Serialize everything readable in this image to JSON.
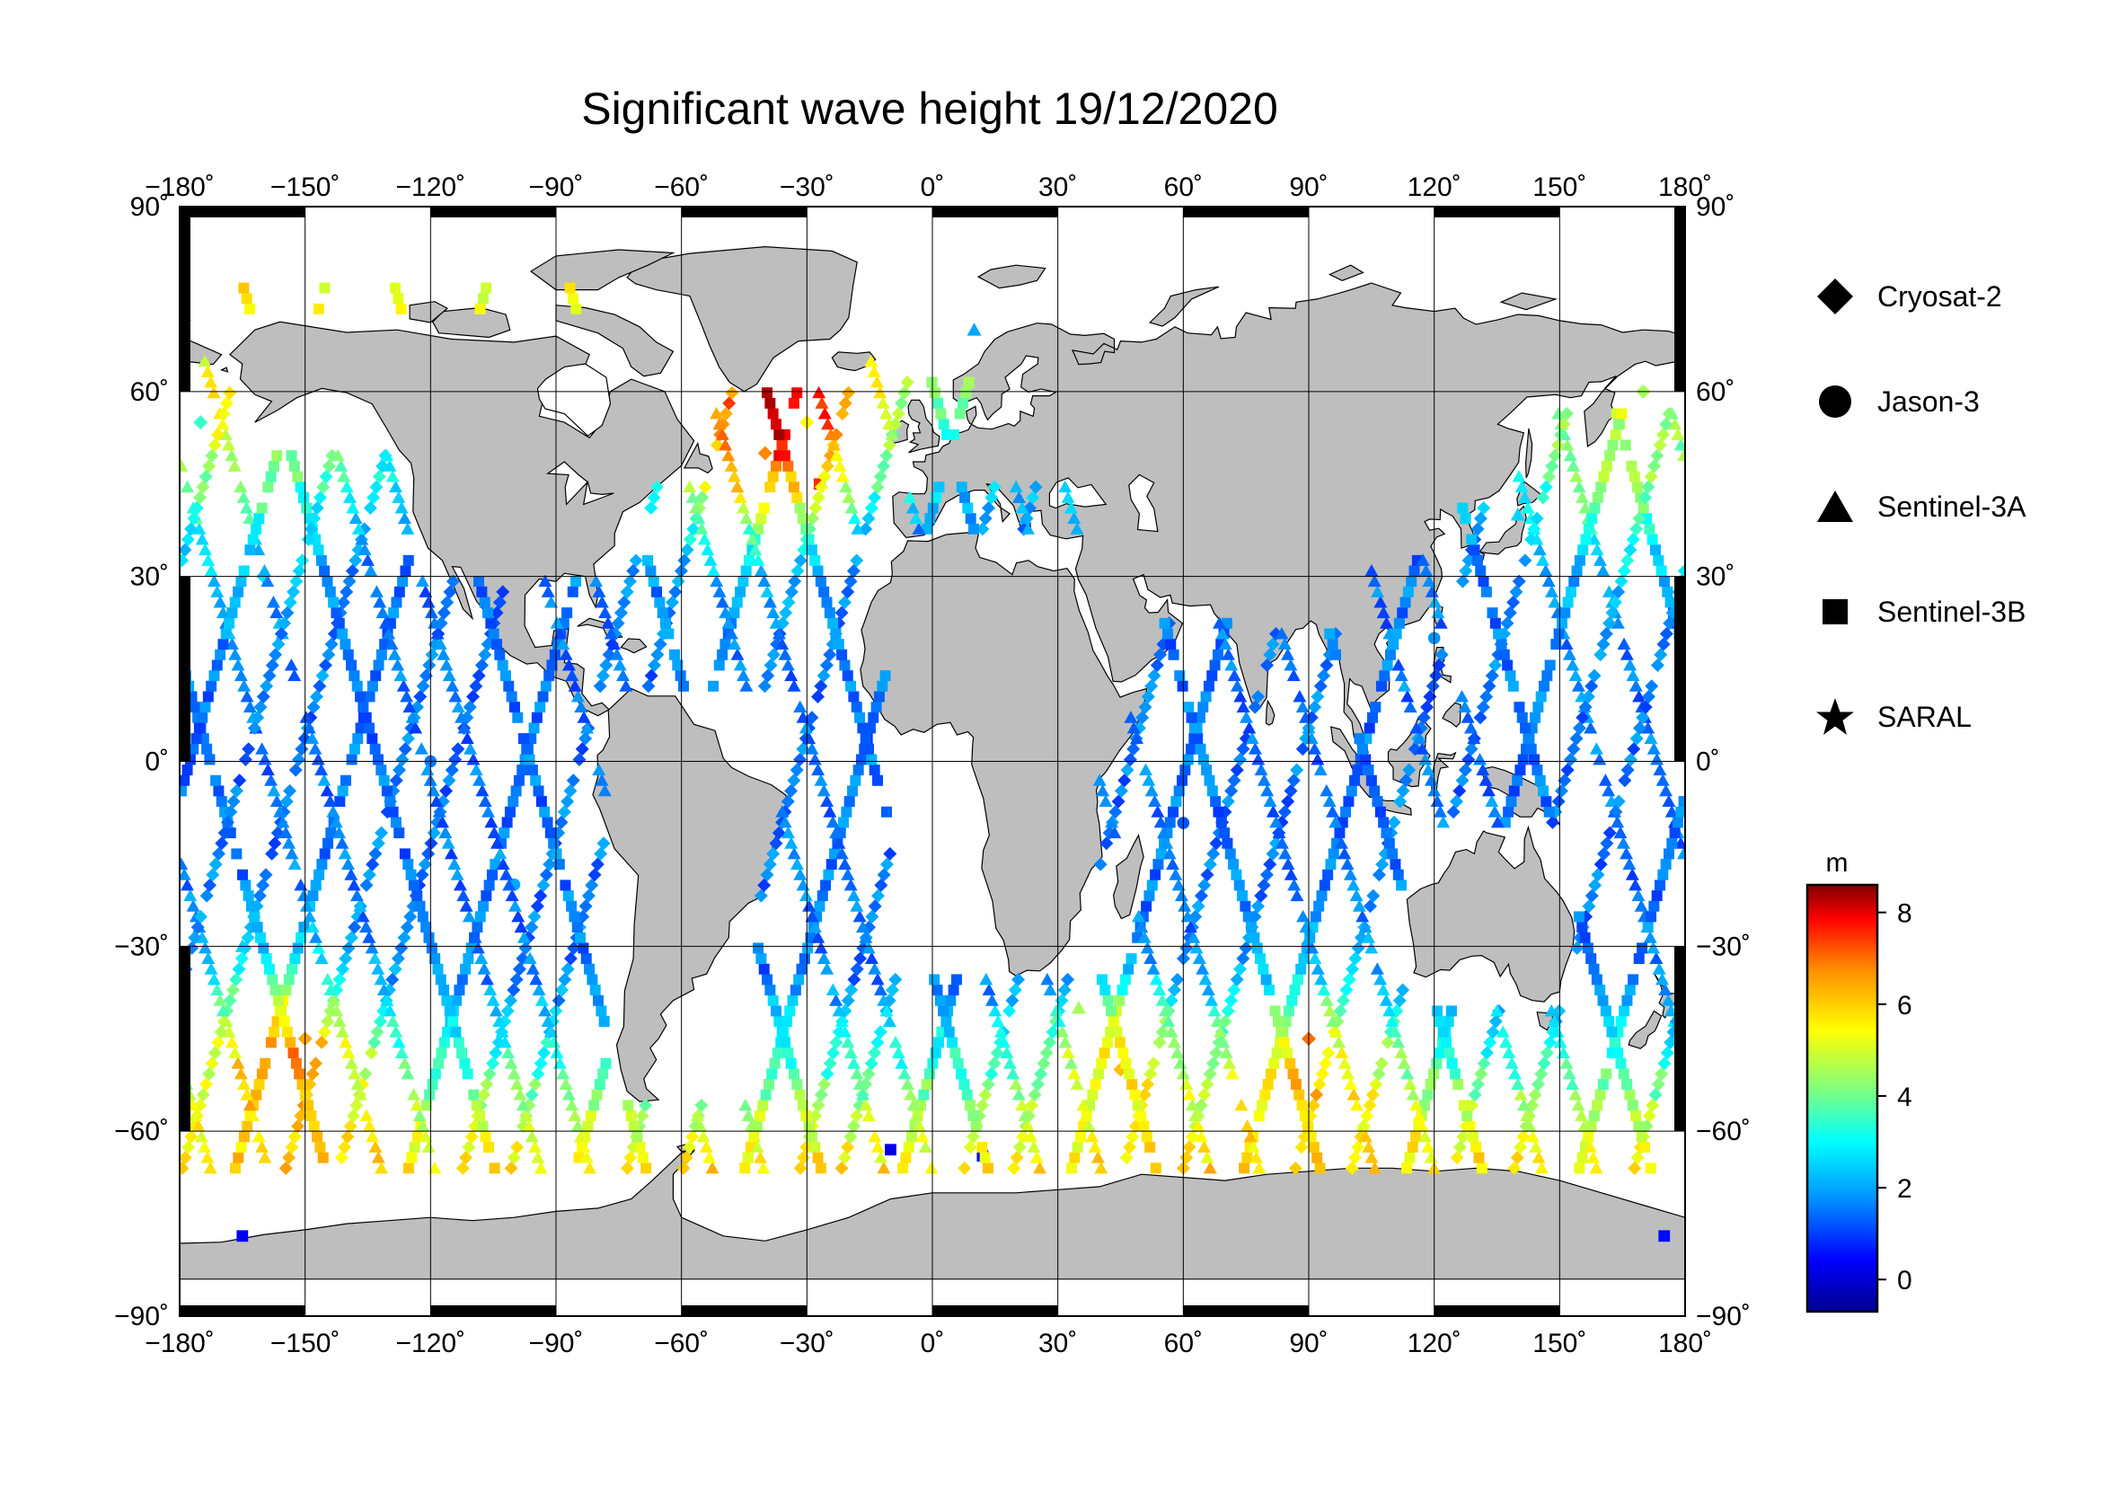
{
  "title": "Significant wave height 19/12/2020",
  "map": {
    "projection": "equirectangular",
    "lon_range": [
      -180,
      180
    ],
    "lat_range": [
      -90,
      90
    ],
    "lon_ticks": [
      -180,
      -150,
      -120,
      -90,
      -60,
      -30,
      0,
      30,
      60,
      90,
      120,
      150,
      180
    ],
    "lat_ticks": [
      -90,
      -60,
      -30,
      0,
      30,
      60,
      90
    ],
    "lon_tick_labels": [
      "−180˚",
      "−150˚",
      "−120˚",
      "−90˚",
      "−60˚",
      "−30˚",
      "0˚",
      "30˚",
      "60˚",
      "90˚",
      "120˚",
      "150˚",
      "180˚"
    ],
    "lat_tick_labels": [
      "−90˚",
      "−60˚",
      "−30˚",
      "0˚",
      "30˚",
      "60˚",
      "90˚"
    ],
    "gridlines": true,
    "land_color": "#bebebe",
    "ocean_color": "#ffffff",
    "frame_color": "#000000"
  },
  "legend": {
    "placement": "right",
    "items": [
      {
        "label": "Cryosat-2",
        "marker": "diamond"
      },
      {
        "label": "Jason-3",
        "marker": "circle"
      },
      {
        "label": "Sentinel-3A",
        "marker": "triangle"
      },
      {
        "label": "Sentinel-3B",
        "marker": "square"
      },
      {
        "label": "SARAL",
        "marker": "star"
      }
    ]
  },
  "colorbar": {
    "unit": "m",
    "range": [
      -0.7,
      8.6
    ],
    "ticks": [
      0,
      2,
      4,
      6,
      8
    ],
    "tick_labels": [
      "0",
      "2",
      "4",
      "6",
      "8"
    ],
    "colormap": [
      "#00008f",
      "#0000ff",
      "#00a0ff",
      "#00ffff",
      "#7fff7f",
      "#ffff00",
      "#ff9000",
      "#ff0000",
      "#800000"
    ]
  },
  "chart_data": {
    "type": "scatter",
    "title": "Significant wave height 19/12/2020",
    "xlabel": "",
    "ylabel": "",
    "xlim": [
      -180,
      180
    ],
    "ylim": [
      -90,
      90
    ],
    "color_variable": "Significant wave height (m)",
    "series": [
      {
        "name": "Cryosat-2",
        "marker": "diamond",
        "points": [
          {
            "lon": -175,
            "lat": 55,
            "swh": 3.5
          },
          {
            "lon": -160,
            "lat": 30,
            "swh": 2.8
          },
          {
            "lon": -150,
            "lat": -45,
            "swh": 6.5
          },
          {
            "lon": -40,
            "lat": 50,
            "swh": 6.8
          },
          {
            "lon": -30,
            "lat": 55,
            "swh": 5.5
          },
          {
            "lon": 45,
            "lat": -50,
            "swh": 6.2
          },
          {
            "lon": 90,
            "lat": -45,
            "swh": 7.0
          },
          {
            "lon": 170,
            "lat": 60,
            "swh": 4.5
          }
        ]
      },
      {
        "name": "Jason-3",
        "marker": "circle",
        "points": [
          {
            "lon": -120,
            "lat": 0,
            "swh": 1.5
          },
          {
            "lon": -100,
            "lat": -20,
            "swh": 2.0
          },
          {
            "lon": 60,
            "lat": -10,
            "swh": 1.2
          },
          {
            "lon": 120,
            "lat": 20,
            "swh": 1.8
          }
        ]
      },
      {
        "name": "Sentinel-3A",
        "marker": "triangle",
        "points": [
          {
            "lon": -165,
            "lat": -30,
            "swh": 2.5
          },
          {
            "lon": 10,
            "lat": 70,
            "swh": 2.0
          },
          {
            "lon": 35,
            "lat": -40,
            "swh": 4.5
          },
          {
            "lon": 140,
            "lat": 40,
            "swh": 2.5
          }
        ]
      },
      {
        "name": "Sentinel-3B",
        "marker": "square",
        "points": [
          {
            "lon": -165,
            "lat": -77,
            "swh": 0.3
          },
          {
            "lon": -10,
            "lat": -63,
            "swh": 0.2
          },
          {
            "lon": 12,
            "lat": -64,
            "swh": 0.3
          },
          {
            "lon": 175,
            "lat": -77,
            "swh": 0.5
          },
          {
            "lon": -27,
            "lat": 45,
            "swh": 7.5
          }
        ]
      },
      {
        "name": "SARAL",
        "marker": "star",
        "points": []
      }
    ]
  }
}
